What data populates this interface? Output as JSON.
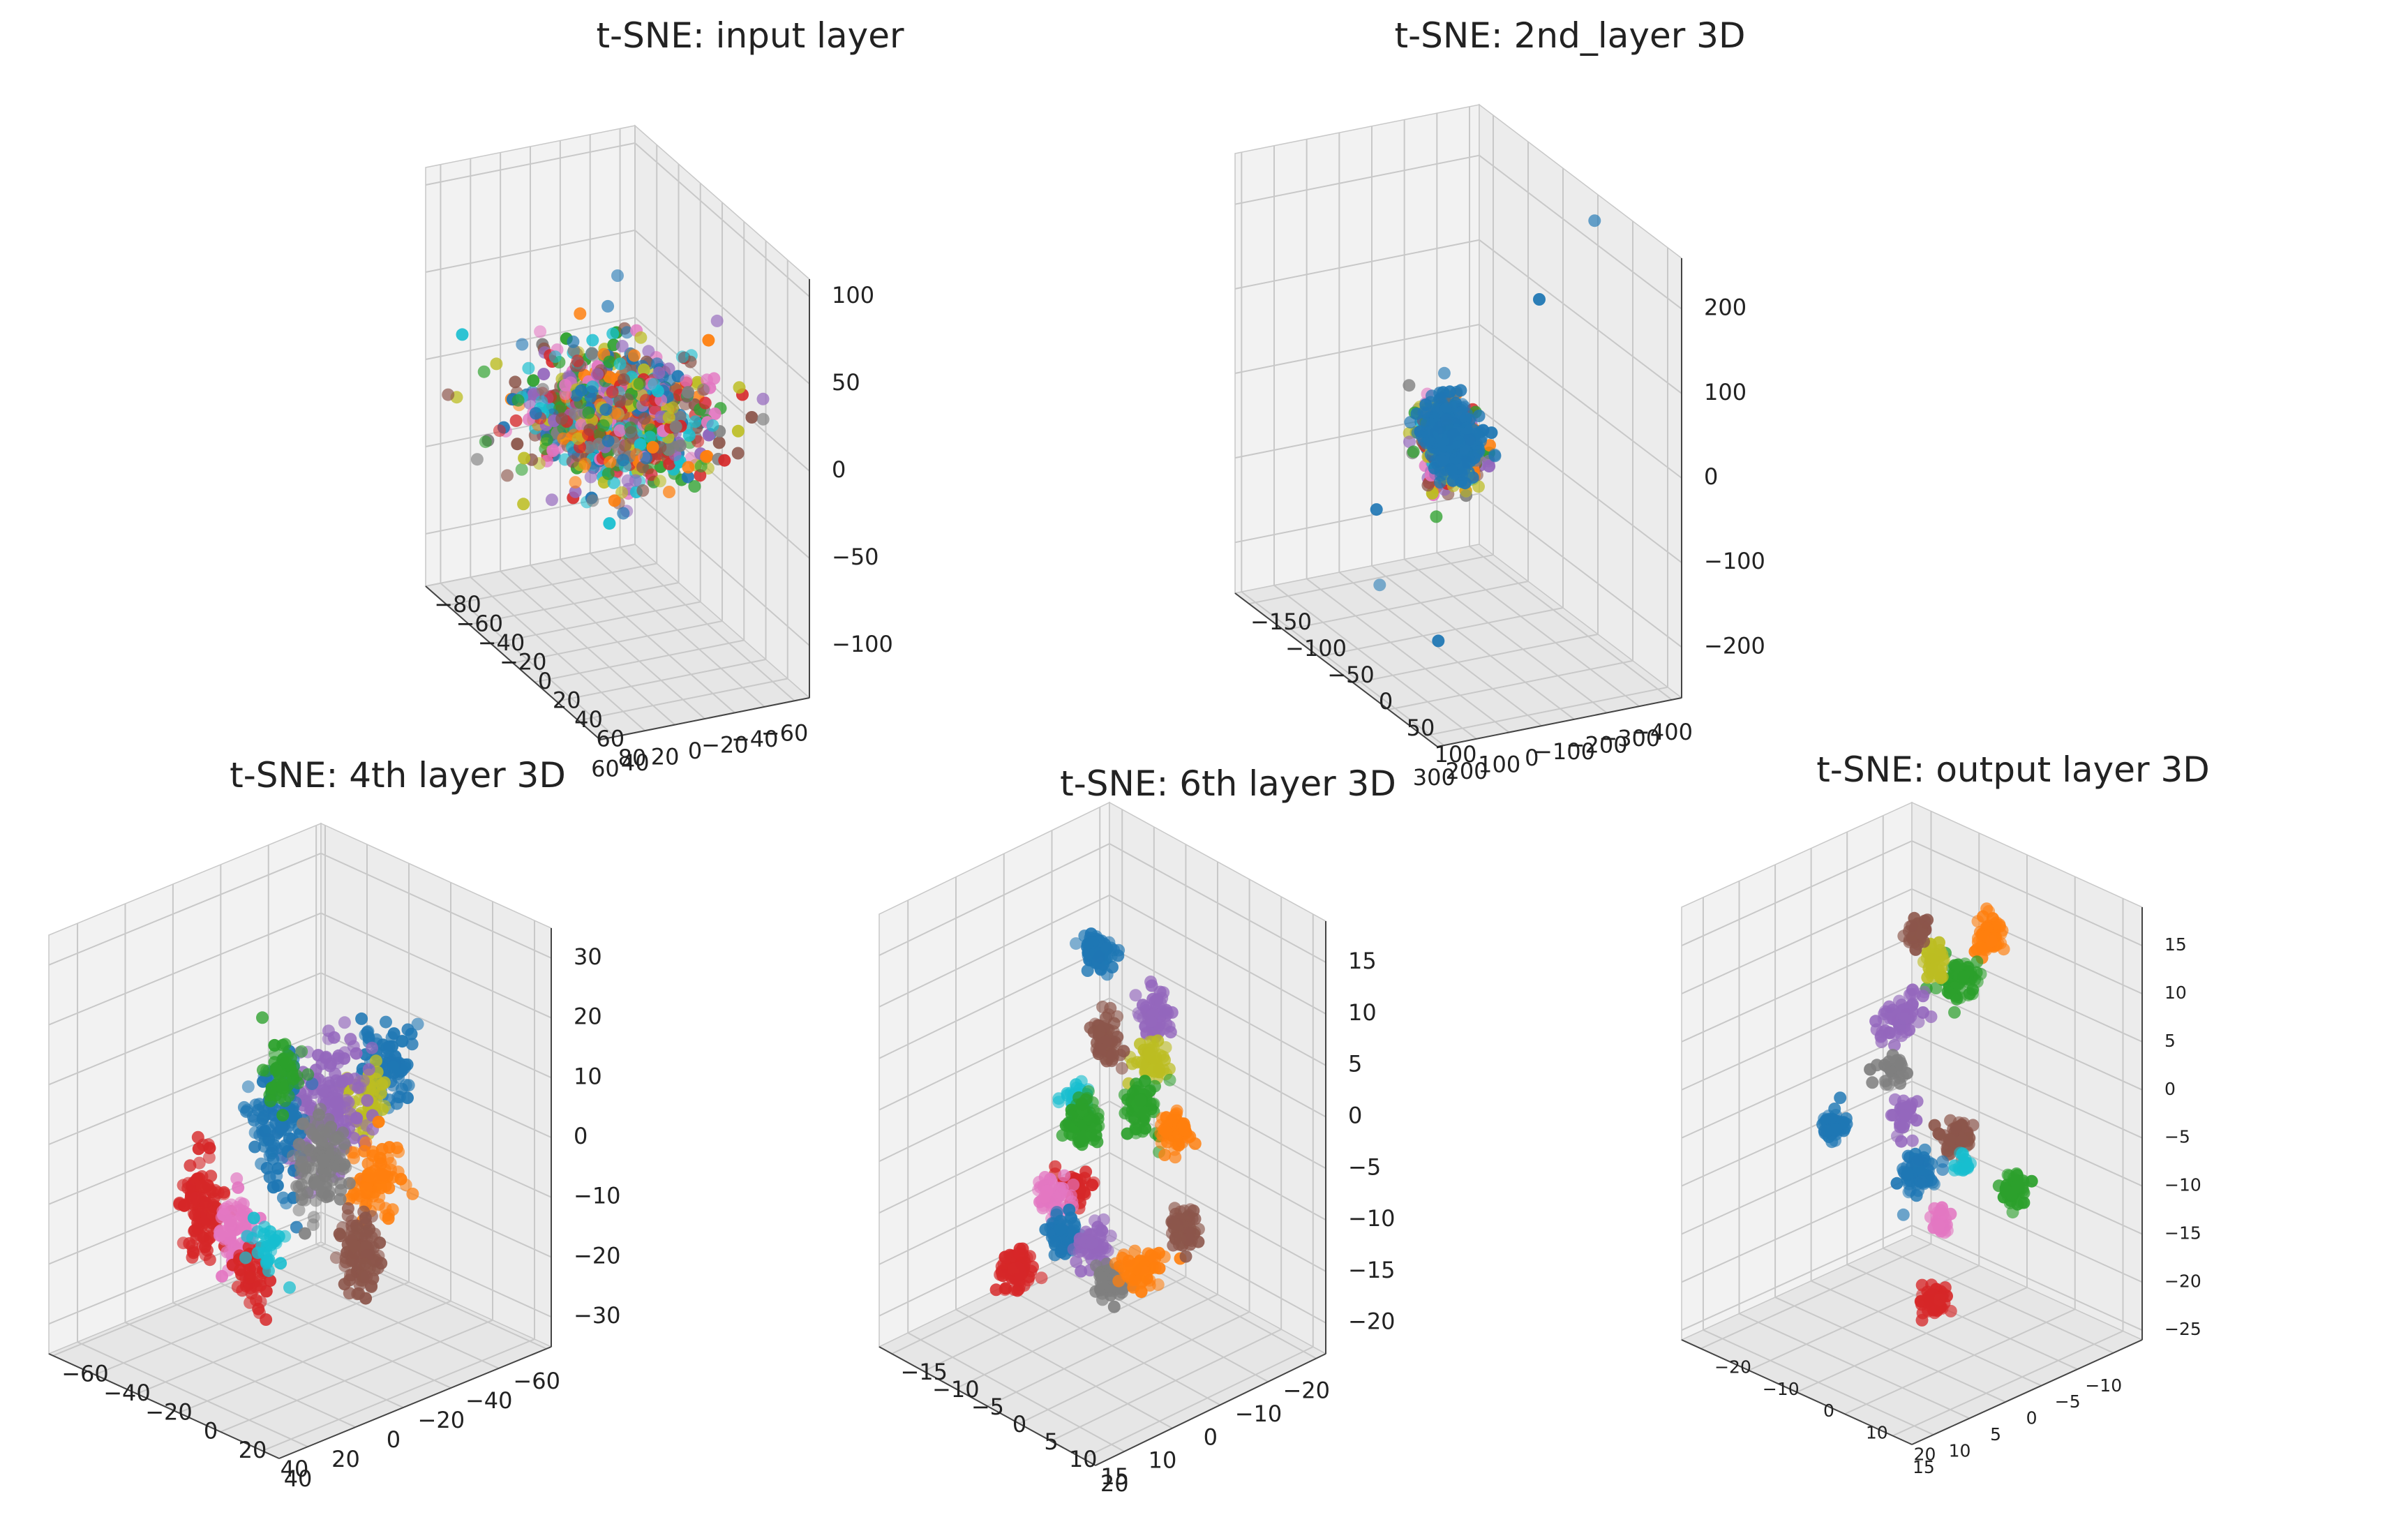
{
  "figure": {
    "background": "#ffffff",
    "pane_colors": [
      "#f2f2f2",
      "#ececec",
      "#e6e6e6"
    ],
    "grid_color": "#c8c8c8",
    "palette": [
      "#1f77b4",
      "#ff7f0e",
      "#2ca02c",
      "#d62728",
      "#9467bd",
      "#8c564b",
      "#e377c2",
      "#7f7f7f",
      "#bcbd22",
      "#17becf"
    ]
  },
  "chart_data": [
    {
      "type": "scatter",
      "projection": "3d",
      "title": "t-SNE: input layer",
      "xlim": [
        -70,
        70
      ],
      "ylim": [
        -80,
        80
      ],
      "zlim": [
        -130,
        110
      ],
      "x_ticks": [
        "−60",
        "−40",
        "−20",
        "0",
        "20",
        "40",
        "60"
      ],
      "y_ticks": [
        "−80",
        "−60",
        "−40",
        "−20",
        "0",
        "20",
        "40",
        "60",
        "80"
      ],
      "z_ticks": [
        "100",
        "50",
        "0",
        "−50",
        "−100"
      ],
      "clusters": [
        {
          "class": "all",
          "mixed": true,
          "center": [
            0,
            0,
            0
          ],
          "spread": [
            55,
            45,
            28
          ],
          "count": 900
        }
      ],
      "outliers": [
        {
          "class": 0,
          "point": [
            0,
            0,
            80
          ]
        }
      ]
    },
    {
      "type": "scatter",
      "projection": "3d",
      "title": "t-SNE: 2nd_layer 3D",
      "xlim": [
        -430,
        320
      ],
      "ylim": [
        -170,
        120
      ],
      "zlim": [
        -260,
        260
      ],
      "x_ticks": [
        "−400",
        "−300",
        "−200",
        "−100",
        "0",
        "100",
        "200",
        "300"
      ],
      "y_ticks": [
        "−150",
        "−100",
        "−50",
        "0",
        "50",
        "100"
      ],
      "z_ticks": [
        "200",
        "100",
        "0",
        "−100",
        "−200"
      ],
      "clusters": [
        {
          "class": "all",
          "mixed": true,
          "center": [
            20,
            0,
            0
          ],
          "spread": [
            70,
            30,
            45
          ],
          "count": 500
        },
        {
          "class": 0,
          "center": [
            30,
            5,
            10
          ],
          "spread": [
            55,
            25,
            35
          ],
          "count": 350
        }
      ],
      "outliers": [
        {
          "class": 0,
          "point": [
            -420,
            0,
            230
          ]
        },
        {
          "class": 0,
          "point": [
            -250,
            0,
            150
          ]
        },
        {
          "class": 0,
          "point": [
            250,
            0,
            -60
          ]
        },
        {
          "class": 0,
          "point": [
            240,
            0,
            -150
          ]
        },
        {
          "class": 0,
          "point": [
            60,
            0,
            -230
          ]
        }
      ]
    },
    {
      "type": "scatter",
      "projection": "3d",
      "title": "t-SNE: 4th layer 3D",
      "xlim": [
        -62,
        52
      ],
      "ylim": [
        -62,
        48
      ],
      "zlim": [
        -35,
        35
      ],
      "x_ticks": [
        "−60",
        "−40",
        "−20",
        "0",
        "20",
        "40"
      ],
      "y_ticks": [
        "−60",
        "−40",
        "−20",
        "0",
        "20",
        "40"
      ],
      "z_ticks": [
        "30",
        "20",
        "10",
        "0",
        "−10",
        "−20",
        "−30"
      ],
      "clusters": [
        {
          "class": 0,
          "center": [
            -35,
            0,
            8
          ],
          "spread": [
            9,
            10,
            7
          ],
          "count": 90
        },
        {
          "class": 8,
          "center": [
            -27,
            0,
            4
          ],
          "spread": [
            6,
            6,
            5
          ],
          "count": 60
        },
        {
          "class": 4,
          "center": [
            -5,
            5,
            8
          ],
          "spread": [
            13,
            12,
            11
          ],
          "count": 170
        },
        {
          "class": 0,
          "center": [
            15,
            5,
            8
          ],
          "spread": [
            9,
            9,
            11
          ],
          "count": 110
        },
        {
          "class": 2,
          "center": [
            12,
            5,
            16
          ],
          "spread": [
            7,
            7,
            6
          ],
          "count": 50
        },
        {
          "class": 3,
          "center": [
            42,
            0,
            -2
          ],
          "spread": [
            6,
            6,
            9
          ],
          "count": 110
        },
        {
          "class": 1,
          "center": [
            -25,
            5,
            -8
          ],
          "spread": [
            8,
            8,
            7
          ],
          "count": 80
        },
        {
          "class": 7,
          "center": [
            -8,
            0,
            -4
          ],
          "spread": [
            8,
            8,
            8
          ],
          "count": 100
        },
        {
          "class": 5,
          "center": [
            -28,
            -5,
            -22
          ],
          "spread": [
            6,
            6,
            7
          ],
          "count": 100
        },
        {
          "class": 6,
          "center": [
            24,
            -5,
            -10
          ],
          "spread": [
            6,
            6,
            7
          ],
          "count": 70
        },
        {
          "class": 3,
          "center": [
            14,
            -8,
            -20
          ],
          "spread": [
            5,
            6,
            6
          ],
          "count": 45
        },
        {
          "class": 9,
          "center": [
            8,
            -8,
            -16
          ],
          "spread": [
            5,
            5,
            5
          ],
          "count": 30
        }
      ]
    },
    {
      "type": "scatter",
      "projection": "3d",
      "title": "t-SNE: 6th layer 3D",
      "xlim": [
        -22,
        26
      ],
      "ylim": [
        -17,
        17
      ],
      "zlim": [
        -23,
        19
      ],
      "x_ticks": [
        "−20",
        "−10",
        "0",
        "10",
        "20"
      ],
      "y_ticks": [
        "−15",
        "−10",
        "−5",
        "0",
        "5",
        "10",
        "15"
      ],
      "z_ticks": [
        "15",
        "10",
        "5",
        "0",
        "−5",
        "−10",
        "−15",
        "−20"
      ],
      "clusters": [
        {
          "class": 0,
          "center": [
            3,
            0,
            16
          ],
          "spread": [
            2,
            2,
            1.5
          ],
          "count": 70
        },
        {
          "class": 4,
          "center": [
            -9,
            0,
            7
          ],
          "spread": [
            2.5,
            2,
            2
          ],
          "count": 55
        },
        {
          "class": 8,
          "center": [
            -8,
            0,
            3
          ],
          "spread": [
            2,
            2,
            2
          ],
          "count": 50
        },
        {
          "class": 5,
          "center": [
            1,
            0,
            7
          ],
          "spread": [
            2,
            2,
            2
          ],
          "count": 60
        },
        {
          "class": 9,
          "center": [
            7,
            0,
            2
          ],
          "spread": [
            1.5,
            1.5,
            1.5
          ],
          "count": 40
        },
        {
          "class": 2,
          "center": [
            6,
            0,
            0
          ],
          "spread": [
            2,
            2,
            2
          ],
          "count": 90
        },
        {
          "class": 2,
          "center": [
            -6,
            0,
            -1
          ],
          "spread": [
            2,
            2,
            2.5
          ],
          "count": 70
        },
        {
          "class": 1,
          "center": [
            -13,
            0,
            -5
          ],
          "spread": [
            2,
            2,
            2
          ],
          "count": 60
        },
        {
          "class": 3,
          "center": [
            8,
            0,
            -6
          ],
          "spread": [
            2,
            2,
            1.5
          ],
          "count": 45
        },
        {
          "class": 6,
          "center": [
            12,
            0,
            -6
          ],
          "spread": [
            2,
            2,
            2
          ],
          "count": 60
        },
        {
          "class": 0,
          "center": [
            10,
            0,
            -10
          ],
          "spread": [
            2,
            2,
            2
          ],
          "count": 60
        },
        {
          "class": 4,
          "center": [
            4,
            0,
            -12
          ],
          "spread": [
            2,
            2,
            2
          ],
          "count": 50
        },
        {
          "class": 7,
          "center": [
            0,
            0,
            -17
          ],
          "spread": [
            2,
            2,
            1.5
          ],
          "count": 50
        },
        {
          "class": 1,
          "center": [
            -6,
            0,
            -17
          ],
          "spread": [
            3,
            2,
            1.5
          ],
          "count": 60
        },
        {
          "class": 5,
          "center": [
            -15,
            0,
            -15
          ],
          "spread": [
            2,
            2,
            2
          ],
          "count": 60
        },
        {
          "class": 3,
          "center": [
            20,
            0,
            -11
          ],
          "spread": [
            2,
            2,
            2
          ],
          "count": 70
        }
      ]
    },
    {
      "type": "scatter",
      "projection": "3d",
      "title": "t-SNE: output layer 3D",
      "xlim": [
        -14,
        18
      ],
      "ylim": [
        -24,
        24
      ],
      "zlim": [
        -26,
        19
      ],
      "x_ticks": [
        "−10",
        "−5",
        "0",
        "5",
        "10",
        "15"
      ],
      "y_ticks": [
        "−20",
        "−10",
        "0",
        "10",
        "20"
      ],
      "z_ticks": [
        "15",
        "10",
        "5",
        "0",
        "−5",
        "−10",
        "−15",
        "−20",
        "−25"
      ],
      "clusters": [
        {
          "class": 1,
          "center": [
            -9,
            0,
            12
          ],
          "spread": [
            1.8,
            1.5,
            2
          ],
          "count": 60
        },
        {
          "class": 2,
          "center": [
            -5,
            0,
            9
          ],
          "spread": [
            2.5,
            2,
            2
          ],
          "count": 60
        },
        {
          "class": 8,
          "center": [
            -1,
            0,
            12
          ],
          "spread": [
            1.5,
            1.5,
            2
          ],
          "count": 35
        },
        {
          "class": 5,
          "center": [
            1,
            0,
            16
          ],
          "spread": [
            1.5,
            1.5,
            1.5
          ],
          "count": 45
        },
        {
          "class": 4,
          "center": [
            4,
            0,
            8
          ],
          "spread": [
            3,
            2,
            2
          ],
          "count": 70
        },
        {
          "class": 7,
          "center": [
            5,
            0,
            3
          ],
          "spread": [
            1.5,
            1.5,
            1.5
          ],
          "count": 30
        },
        {
          "class": 4,
          "center": [
            3,
            0,
            -2
          ],
          "spread": [
            1.5,
            1.5,
            2
          ],
          "count": 35
        },
        {
          "class": 0,
          "center": [
            13,
            0,
            0
          ],
          "spread": [
            1.5,
            1.5,
            1.5
          ],
          "count": 55
        },
        {
          "class": 5,
          "center": [
            -4,
            0,
            -7
          ],
          "spread": [
            2,
            2,
            1.5
          ],
          "count": 60
        },
        {
          "class": 0,
          "center": [
            1,
            0,
            -9
          ],
          "spread": [
            2.5,
            2,
            2
          ],
          "count": 60
        },
        {
          "class": 9,
          "center": [
            -5,
            0,
            -10
          ],
          "spread": [
            1,
            1,
            1
          ],
          "count": 15
        },
        {
          "class": 2,
          "center": [
            -12,
            0,
            -15
          ],
          "spread": [
            1.5,
            1.5,
            1.5
          ],
          "count": 45
        },
        {
          "class": 6,
          "center": [
            -2,
            0,
            -15
          ],
          "spread": [
            1,
            1,
            1.5
          ],
          "count": 35
        },
        {
          "class": 3,
          "center": [
            -1,
            0,
            -23
          ],
          "spread": [
            1.5,
            1.5,
            1.5
          ],
          "count": 55
        }
      ]
    }
  ]
}
